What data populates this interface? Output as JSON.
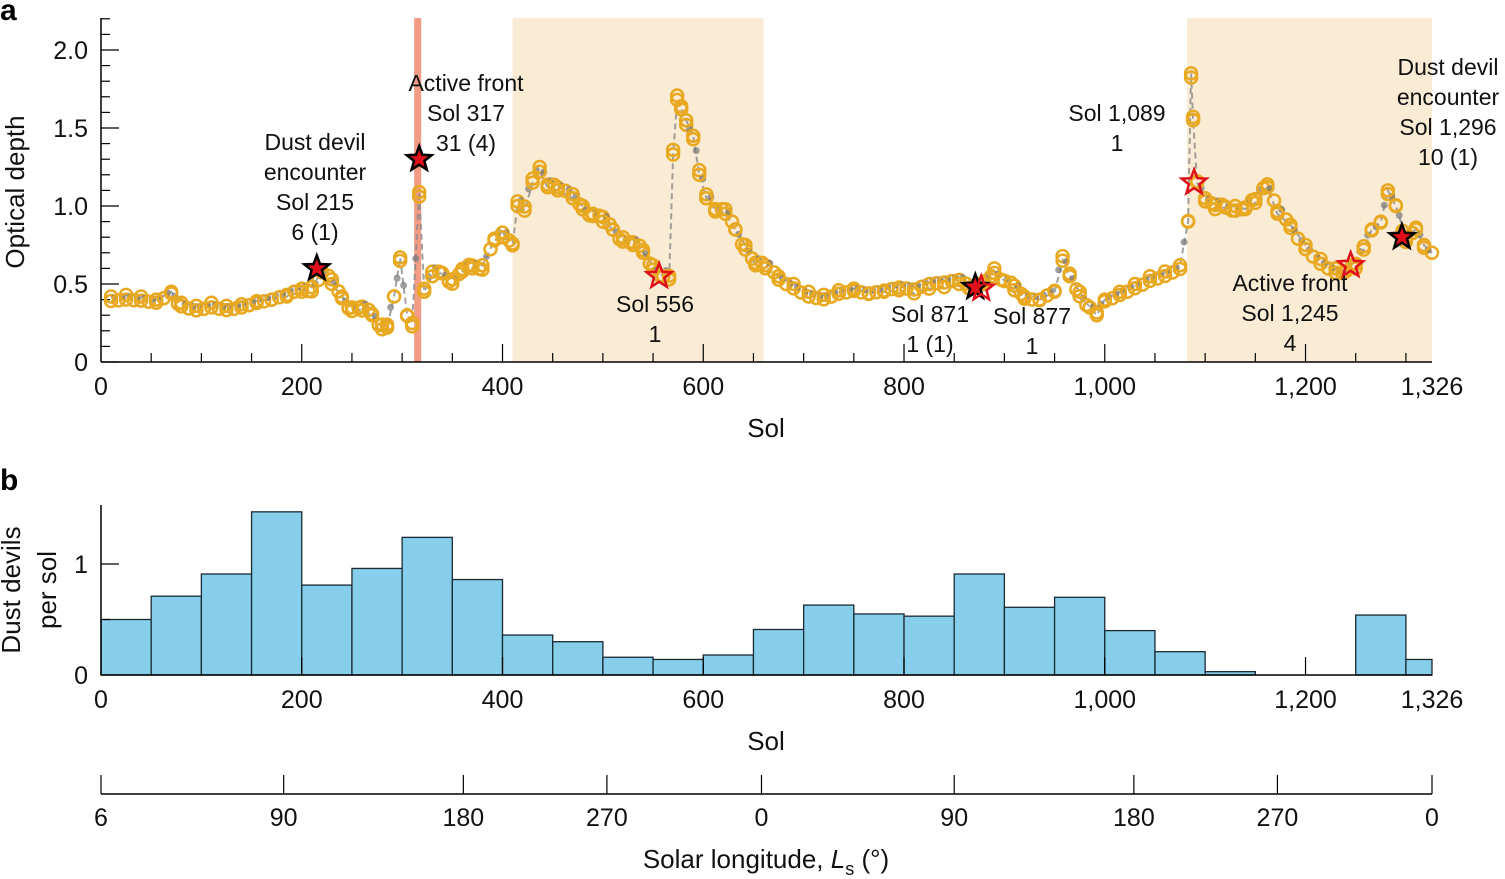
{
  "chart_data": [
    {
      "panel": "a",
      "type": "scatter",
      "xlabel": "Sol",
      "ylabel": "Optical depth",
      "xlim": [
        0,
        1326
      ],
      "ylim": [
        0,
        2.2
      ],
      "xticks": [
        0,
        200,
        400,
        600,
        800,
        1000,
        1200,
        1326
      ],
      "xtick_labels": [
        "0",
        "200",
        "400",
        "600",
        "800",
        "1,000",
        "1,200",
        "1,326"
      ],
      "yticks": [
        0,
        0.5,
        1.0,
        1.5,
        2.0
      ],
      "ytick_labels": [
        "0",
        "0.5",
        "1.0",
        "1.5",
        "2.0"
      ],
      "grid": false,
      "colors": {
        "marker": "#E8A820",
        "line": "#8a8a8a",
        "season_shade": "#FAEBD4",
        "front_band": "#F08A70",
        "star_fill": "#E0101A"
      },
      "shaded_sol_ranges": [
        [
          410,
          660
        ],
        [
          1082,
          1326
        ]
      ],
      "highlight_band_sol_range": [
        312,
        319
      ],
      "series": {
        "x": [
          10,
          25,
          40,
          55,
          70,
          80,
          95,
          110,
          125,
          140,
          155,
          170,
          185,
          200,
          210,
          220,
          230,
          240,
          250,
          260,
          270,
          280,
          285,
          292,
          298,
          305,
          310,
          317,
          322,
          330,
          340,
          350,
          360,
          370,
          380,
          392,
          400,
          410,
          415,
          422,
          430,
          437,
          445,
          455,
          470,
          480,
          490,
          500,
          510,
          520,
          530,
          540,
          550,
          560,
          566,
          570,
          574,
          578,
          583,
          590,
          596,
          603,
          612,
          622,
          632,
          642,
          652,
          662,
          675,
          690,
          705,
          720,
          735,
          750,
          765,
          780,
          795,
          810,
          825,
          840,
          855,
          865,
          880,
          890,
          900,
          910,
          920,
          935,
          950,
          958,
          965,
          975,
          985,
          992,
          1000,
          1015,
          1030,
          1045,
          1060,
          1075,
          1083,
          1086,
          1088,
          1092,
          1100,
          1110,
          1120,
          1130,
          1140,
          1150,
          1162,
          1172,
          1185,
          1200,
          1215,
          1230,
          1240,
          1250,
          1258,
          1266,
          1275,
          1282,
          1290,
          1300,
          1310,
          1318,
          1326
        ],
        "y": [
          0.42,
          0.43,
          0.42,
          0.4,
          0.45,
          0.38,
          0.36,
          0.38,
          0.36,
          0.37,
          0.39,
          0.4,
          0.42,
          0.45,
          0.48,
          0.58,
          0.5,
          0.42,
          0.35,
          0.33,
          0.3,
          0.24,
          0.22,
          0.42,
          0.67,
          0.3,
          0.25,
          1.09,
          0.45,
          0.55,
          0.57,
          0.53,
          0.58,
          0.6,
          0.62,
          0.78,
          0.8,
          0.76,
          1.0,
          0.97,
          1.15,
          1.22,
          1.12,
          1.1,
          1.05,
          1.0,
          0.95,
          0.9,
          0.85,
          0.8,
          0.75,
          0.7,
          0.62,
          0.55,
          0.53,
          1.33,
          1.68,
          1.62,
          1.55,
          1.45,
          1.2,
          1.05,
          0.98,
          0.95,
          0.85,
          0.75,
          0.62,
          0.6,
          0.55,
          0.5,
          0.45,
          0.43,
          0.46,
          0.47,
          0.44,
          0.45,
          0.46,
          0.44,
          0.47,
          0.48,
          0.5,
          0.47,
          0.5,
          0.6,
          0.52,
          0.46,
          0.42,
          0.4,
          0.45,
          0.65,
          0.55,
          0.45,
          0.35,
          0.3,
          0.4,
          0.45,
          0.5,
          0.55,
          0.58,
          0.62,
          0.9,
          1.85,
          1.55,
          1.15,
          1.05,
          0.98,
          0.99,
          1.0,
          0.98,
          1.02,
          1.12,
          0.95,
          0.88,
          0.75,
          0.66,
          0.6,
          0.58,
          0.6,
          0.72,
          0.85,
          0.9,
          1.1,
          1.0,
          0.8,
          0.85,
          0.75,
          0.7
        ]
      },
      "stars": [
        {
          "sol": 215,
          "value": 0.6,
          "style": "filled"
        },
        {
          "sol": 317,
          "value": 1.3,
          "style": "filled"
        },
        {
          "sol": 556,
          "value": 0.55,
          "style": "open"
        },
        {
          "sol": 871,
          "value": 0.48,
          "style": "filled"
        },
        {
          "sol": 877,
          "value": 0.47,
          "style": "open"
        },
        {
          "sol": 1089,
          "value": 1.15,
          "style": "open"
        },
        {
          "sol": 1245,
          "value": 0.62,
          "style": "open"
        },
        {
          "sol": 1296,
          "value": 0.8,
          "style": "filled"
        }
      ],
      "annotations": [
        {
          "lines": [
            "Dust devil",
            "encounter",
            "Sol 215",
            "6 (1)"
          ]
        },
        {
          "lines": [
            "Active front",
            "Sol 317",
            "31 (4)"
          ]
        },
        {
          "lines": [
            "Sol 556",
            "1"
          ]
        },
        {
          "lines": [
            "Sol 871",
            "1 (1)"
          ]
        },
        {
          "lines": [
            "Sol 877",
            "1"
          ]
        },
        {
          "lines": [
            "Sol 1,089",
            "1"
          ]
        },
        {
          "lines": [
            "Active front",
            "Sol 1,245",
            "4"
          ]
        },
        {
          "lines": [
            "Dust devil",
            "encounter",
            "Sol 1,296",
            "10 (1)"
          ]
        }
      ]
    },
    {
      "panel": "b",
      "type": "bar",
      "xlabel": "Sol",
      "ylabel": [
        "Dust devils",
        "per sol"
      ],
      "xlim": [
        0,
        1326
      ],
      "ylim": [
        0,
        1.5
      ],
      "xticks": [
        0,
        200,
        400,
        600,
        800,
        1000,
        1200,
        1326
      ],
      "xtick_labels": [
        "0",
        "200",
        "400",
        "600",
        "800",
        "1,000",
        "1,200",
        "1,326"
      ],
      "yticks": [
        0,
        1
      ],
      "ytick_labels": [
        "0",
        "1"
      ],
      "bar_color": "#87CEEB",
      "bin_edges": [
        0,
        50,
        100,
        150,
        200,
        250,
        300,
        350,
        400,
        450,
        500,
        550,
        600,
        650,
        700,
        750,
        800,
        850,
        900,
        950,
        1000,
        1050,
        1100,
        1150,
        1200,
        1250,
        1300,
        1326
      ],
      "values": [
        0.5,
        0.71,
        0.91,
        1.47,
        0.81,
        0.96,
        1.24,
        0.86,
        0.36,
        0.3,
        0.16,
        0.14,
        0.18,
        0.41,
        0.63,
        0.55,
        0.53,
        0.91,
        0.61,
        0.7,
        0.4,
        0.21,
        0.03,
        0,
        0,
        0.54,
        0.14
      ]
    },
    {
      "type": "secondary-axis",
      "label": "Solar longitude, ",
      "label_symbol": "L",
      "label_subscript": "s",
      "label_unit": " (°)",
      "ticks": [
        {
          "label": "6",
          "sol": 0
        },
        {
          "label": "90",
          "sol": 182
        },
        {
          "label": "180",
          "sol": 361
        },
        {
          "label": "270",
          "sol": 504
        },
        {
          "label": "0",
          "sol": 658
        },
        {
          "label": "90",
          "sol": 850
        },
        {
          "label": "180",
          "sol": 1029
        },
        {
          "label": "270",
          "sol": 1172
        },
        {
          "label": "0",
          "sol": 1326
        }
      ]
    }
  ],
  "panel_labels": [
    "a",
    "b"
  ]
}
